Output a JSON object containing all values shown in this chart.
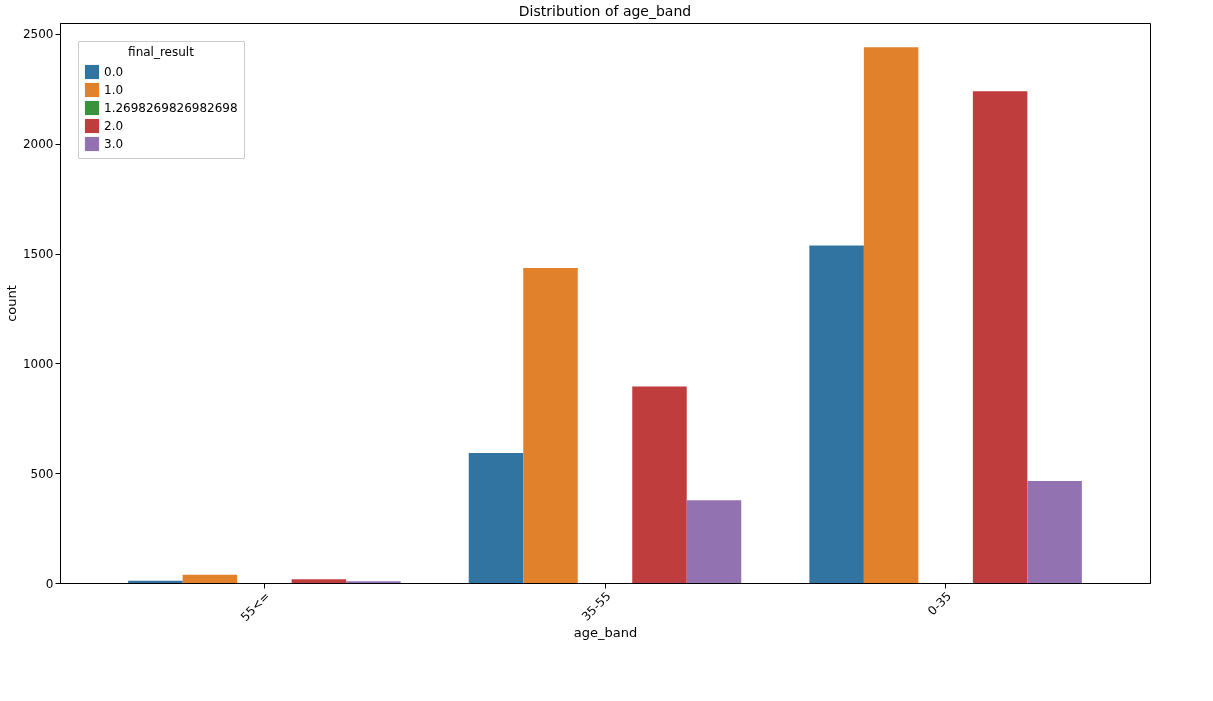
{
  "chart_data": {
    "type": "bar",
    "title": "Distribution of age_band",
    "xlabel": "age_band",
    "ylabel": "count",
    "legend_title": "final_result",
    "categories": [
      "55<=",
      "35-55",
      "0-35"
    ],
    "series": [
      {
        "name": "0.0",
        "color": "#3274a1",
        "values": [
          10,
          592,
          1537
        ]
      },
      {
        "name": "1.0",
        "color": "#e1812c",
        "values": [
          38,
          1434,
          2440
        ]
      },
      {
        "name": "1.2698269826982698",
        "color": "#3a923a",
        "values": [
          0,
          0,
          0
        ]
      },
      {
        "name": "2.0",
        "color": "#c03d3e",
        "values": [
          17,
          895,
          2239
        ]
      },
      {
        "name": "3.0",
        "color": "#9372b2",
        "values": [
          8,
          377,
          464
        ]
      }
    ],
    "ylim": [
      0,
      2550
    ],
    "yticks": [
      0,
      500,
      1000,
      1500,
      2000,
      2500
    ],
    "grid": false,
    "legend": "top left"
  }
}
